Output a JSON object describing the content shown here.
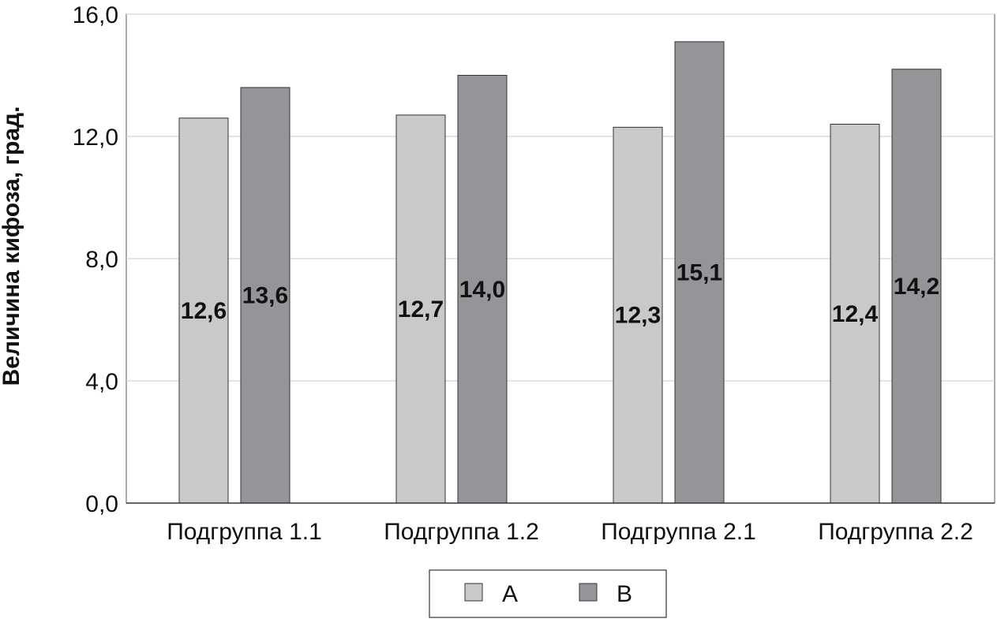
{
  "chart_data": {
    "type": "bar",
    "categories": [
      "Подгруппа 1.1",
      "Подгруппа 1.2",
      "Подгруппа 2.1",
      "Подгруппа 2.2"
    ],
    "series": [
      {
        "name": "A",
        "values": [
          12.6,
          12.7,
          12.3,
          12.4
        ],
        "labels": [
          "12,6",
          "12,7",
          "12,3",
          "12,4"
        ],
        "color": "#c8c9cb"
      },
      {
        "name": "B",
        "values": [
          13.6,
          14.0,
          15.1,
          14.2
        ],
        "labels": [
          "13,6",
          "14,0",
          "15,1",
          "14,2"
        ],
        "color": "#949598"
      }
    ],
    "ylabel": "Величина кифоза, град.",
    "xlabel": "",
    "ylim": [
      0,
      16
    ],
    "yticks": [
      0,
      4,
      8,
      12,
      16
    ],
    "ytick_labels": [
      "0,0",
      "4,0",
      "8,0",
      "12,0",
      "16,0"
    ],
    "grid": true,
    "legend": "bottom"
  }
}
